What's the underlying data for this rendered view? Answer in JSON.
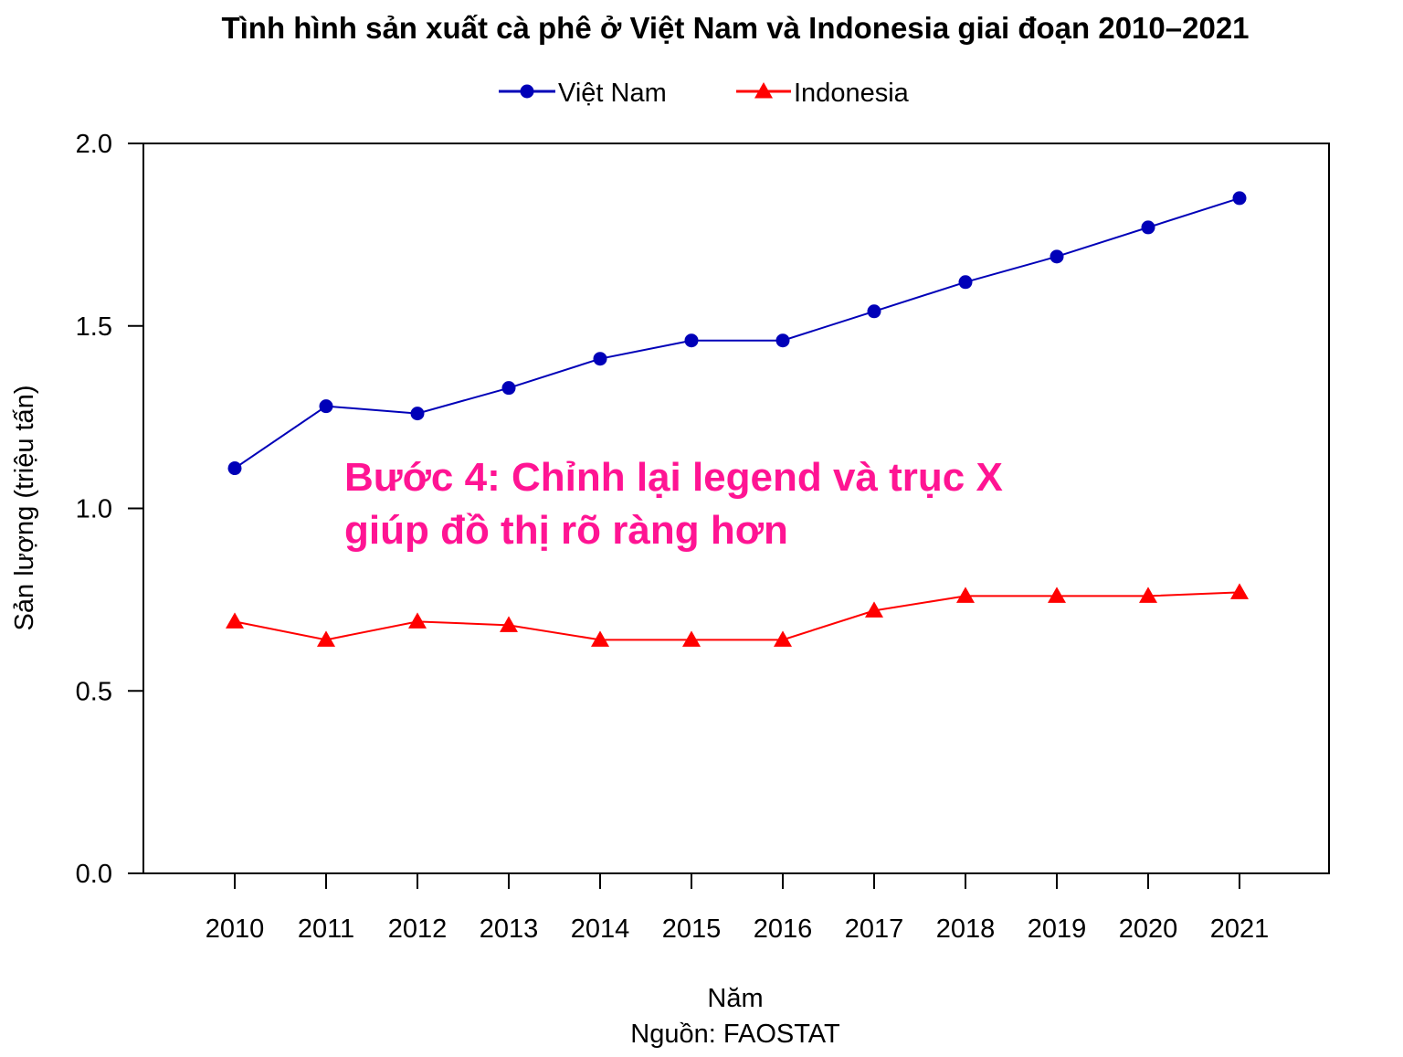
{
  "chart_data": {
    "type": "line",
    "title": "Tình hình sản xuất cà phê ở Việt Nam và Indonesia giai đoạn 2010–2021",
    "xlabel": "Năm",
    "ylabel": "Sản lượng (triệu tấn)",
    "caption": "Nguồn: FAOSTAT",
    "x": [
      "2010",
      "2011",
      "2012",
      "2013",
      "2014",
      "2015",
      "2016",
      "2017",
      "2018",
      "2019",
      "2020",
      "2021"
    ],
    "ylim": [
      0,
      2
    ],
    "yticks": [
      "0.0",
      "0.5",
      "1.0",
      "1.5",
      "2.0"
    ],
    "grid": false,
    "legend_position": "top-center",
    "series": [
      {
        "name": "Việt Nam",
        "color": "#0000b8",
        "marker": "circle",
        "values": [
          1.11,
          1.28,
          1.26,
          1.33,
          1.41,
          1.46,
          1.46,
          1.54,
          1.62,
          1.69,
          1.77,
          1.85
        ]
      },
      {
        "name": "Indonesia",
        "color": "#ff0000",
        "marker": "triangle",
        "values": [
          0.69,
          0.64,
          0.69,
          0.68,
          0.64,
          0.64,
          0.64,
          0.72,
          0.76,
          0.76,
          0.76,
          0.77
        ]
      }
    ],
    "annotation": {
      "lines": [
        "Bước 4: Chỉnh lại legend và trục X",
        "giúp đồ thị rõ ràng hơn"
      ],
      "color": "#ff1493"
    }
  }
}
